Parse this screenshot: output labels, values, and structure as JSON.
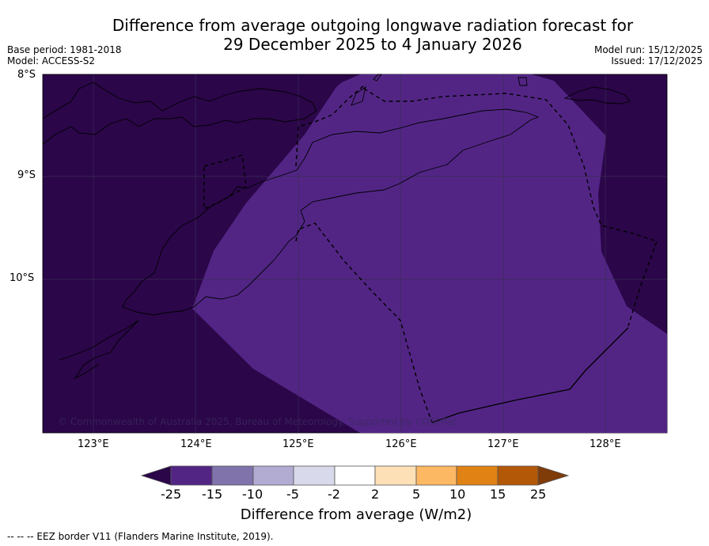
{
  "title": {
    "line1": "Difference from average outgoing longwave radiation forecast for",
    "line2": "29 December 2025 to 4 January 2026"
  },
  "meta": {
    "base_period": "Base period: 1981-2018",
    "model": "Model: ACCESS-S2",
    "model_run": "Model run: 15/12/2025",
    "issued": "Issued: 17/12/2025"
  },
  "axes": {
    "lat_labels": [
      "8°S",
      "9°S",
      "10°S"
    ],
    "lon_labels": [
      "123°E",
      "124°E",
      "125°E",
      "126°E",
      "127°E",
      "128°E"
    ]
  },
  "map": {
    "copyright": "© Commonwealth of Australia 2025, Bureau of Meteorology. Supported by COSPPac",
    "colors": {
      "anomaly_low": "#2b0649",
      "anomaly_mid": "#522585",
      "coastline": "#000000",
      "gridline": "#3d2c55"
    }
  },
  "colorbar": {
    "label": "Difference from average (W/m2)",
    "ticks": [
      "-25",
      "-15",
      "-10",
      "-5",
      "-2",
      "2",
      "5",
      "10",
      "15",
      "25"
    ],
    "colors": [
      "#2b0649",
      "#522585",
      "#8073ac",
      "#b2abd2",
      "#d8daeb",
      "#ffffff",
      "#fee0b6",
      "#fdb863",
      "#e08214",
      "#b35806",
      "#7f3b08"
    ]
  },
  "footnote": "--  --  -- EEZ border V11 (Flanders Marine Institute, 2019)."
}
